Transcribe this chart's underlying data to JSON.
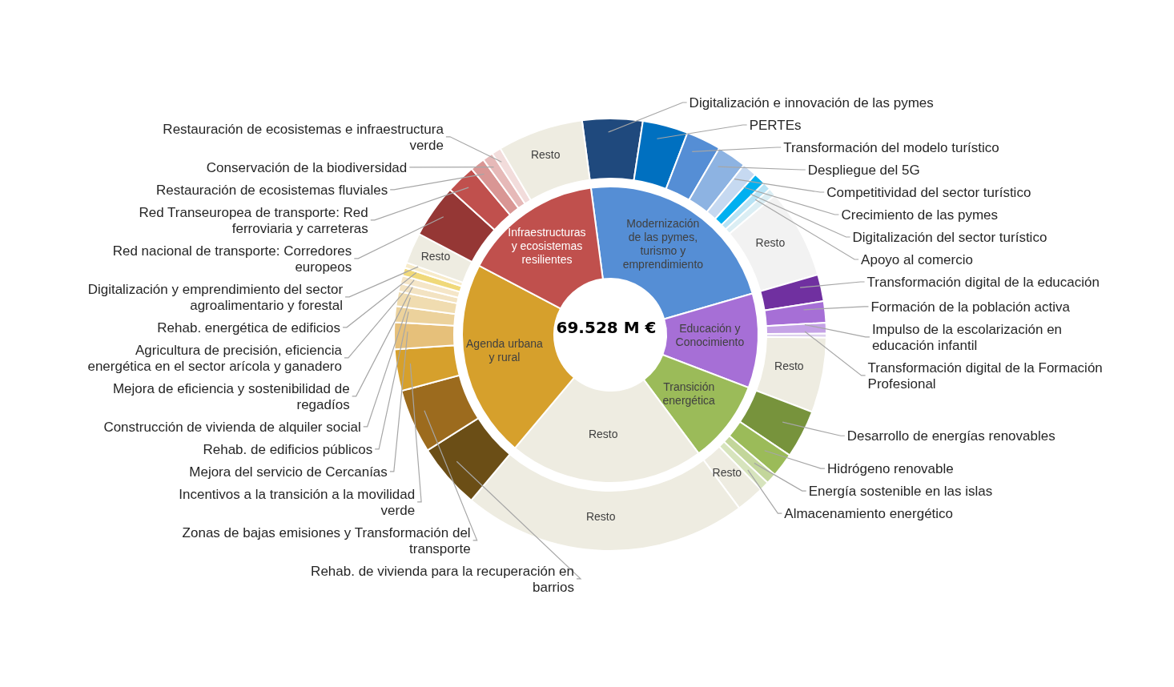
{
  "chart_data": [
    {
      "type": "donut",
      "categories": [
        "Modernización de las pymes, turismo y emprendimiento",
        "Educación y Conocimiento",
        "Transición energética",
        "Resto",
        "Agenda urbana y rural",
        "Infraestructuras y ecosistemas resilientes"
      ],
      "values": [
        22.6,
        10.3,
        9.0,
        21.3,
        21.6,
        15.2
      ],
      "colors": [
        "#558ed5",
        "#a66fd6",
        "#9bbb59",
        "#eeece1",
        "#d6a02c",
        "#c0504d"
      ],
      "annotations": [
        "69.528 M €"
      ]
    },
    {
      "type": "donut",
      "categories": [
        "Digitalización e innovación de las pymes",
        "PERTEs",
        "Transformación del modelo turístico",
        "Despliegue del 5G",
        "Competitividad del sector turístico",
        "Crecimiento de las pymes",
        "Digitalización del sector turístico",
        "Apoyo al comercio",
        "Resto",
        "Transformación digital de la educación",
        "Formación de la población activa",
        "Impulso de la escolarización en educación infantil",
        "Transformación digital de la Formación Profesional",
        "Resto",
        "Desarrollo de energías renovables",
        "Hidrógeno renovable",
        "Energía sostenible en las islas",
        "Almacenamiento energético",
        "Resto",
        "Resto",
        "Rehab. de vivienda para la recuperación en barrios",
        "Zonas de bajas emisiones y Transformación del transporte",
        "Incentivos a la transición a la movilidad verde",
        "Mejora del servicio de Cercanías",
        "Rehab. de edificios públicos",
        "Construcción de vivienda de alquiler social",
        "Mejora de eficiencia y sostenibilidad de regadíos",
        "Agricultura de precisión, eficiencia energética en el sector arícola y ganadero",
        "Rehab. energética de edificios",
        "Digitalización y emprendimiento del sector agroalimentario y forestal",
        "Resto",
        "Red nacional de transporte: Corredores europeos",
        "Red Transeuropea de transporte: Red ferroviaria y carreteras",
        "Restauración de ecosistemas fluviales",
        "Conservación de la biodiversidad",
        "Restauración de ecosistemas e infraestructura verde",
        "Resto"
      ],
      "values": [
        4.5,
        3.4,
        2.6,
        2.2,
        1.1,
        0.9,
        0.6,
        0.6,
        6.7,
        2.0,
        1.6,
        0.8,
        0.3,
        5.6,
        3.6,
        1.8,
        0.8,
        0.7,
        2.1,
        21.3,
        4.9,
        4.8,
        3.1,
        2.0,
        1.2,
        1.1,
        0.6,
        0.6,
        0.6,
        0.4,
        2.3,
        4.0,
        2.2,
        1.1,
        0.8,
        0.7,
        6.4
      ],
      "colors": [
        "#1f497d",
        "#0070c0",
        "#558ed5",
        "#8db3e2",
        "#c6d9f1",
        "#00b0f0",
        "#b7e3f5",
        "#dbeef4",
        "#f2f2f2",
        "#7030a0",
        "#a66fd6",
        "#c5a3e6",
        "#ddd0ee",
        "#eeece1",
        "#77933c",
        "#9bbb59",
        "#c3d69b",
        "#d7e4bd",
        "#eeece1",
        "#eeece1",
        "#6b4e16",
        "#9c6b1e",
        "#d6a02c",
        "#e6c07a",
        "#ecd29c",
        "#f0dcb0",
        "#f3e3c2",
        "#f5e6c8",
        "#f0d97a",
        "#f7ebc9",
        "#eeece1",
        "#953735",
        "#c0504d",
        "#d99694",
        "#e6b9b8",
        "#f2dcdb",
        "#eeece1"
      ]
    }
  ]
}
